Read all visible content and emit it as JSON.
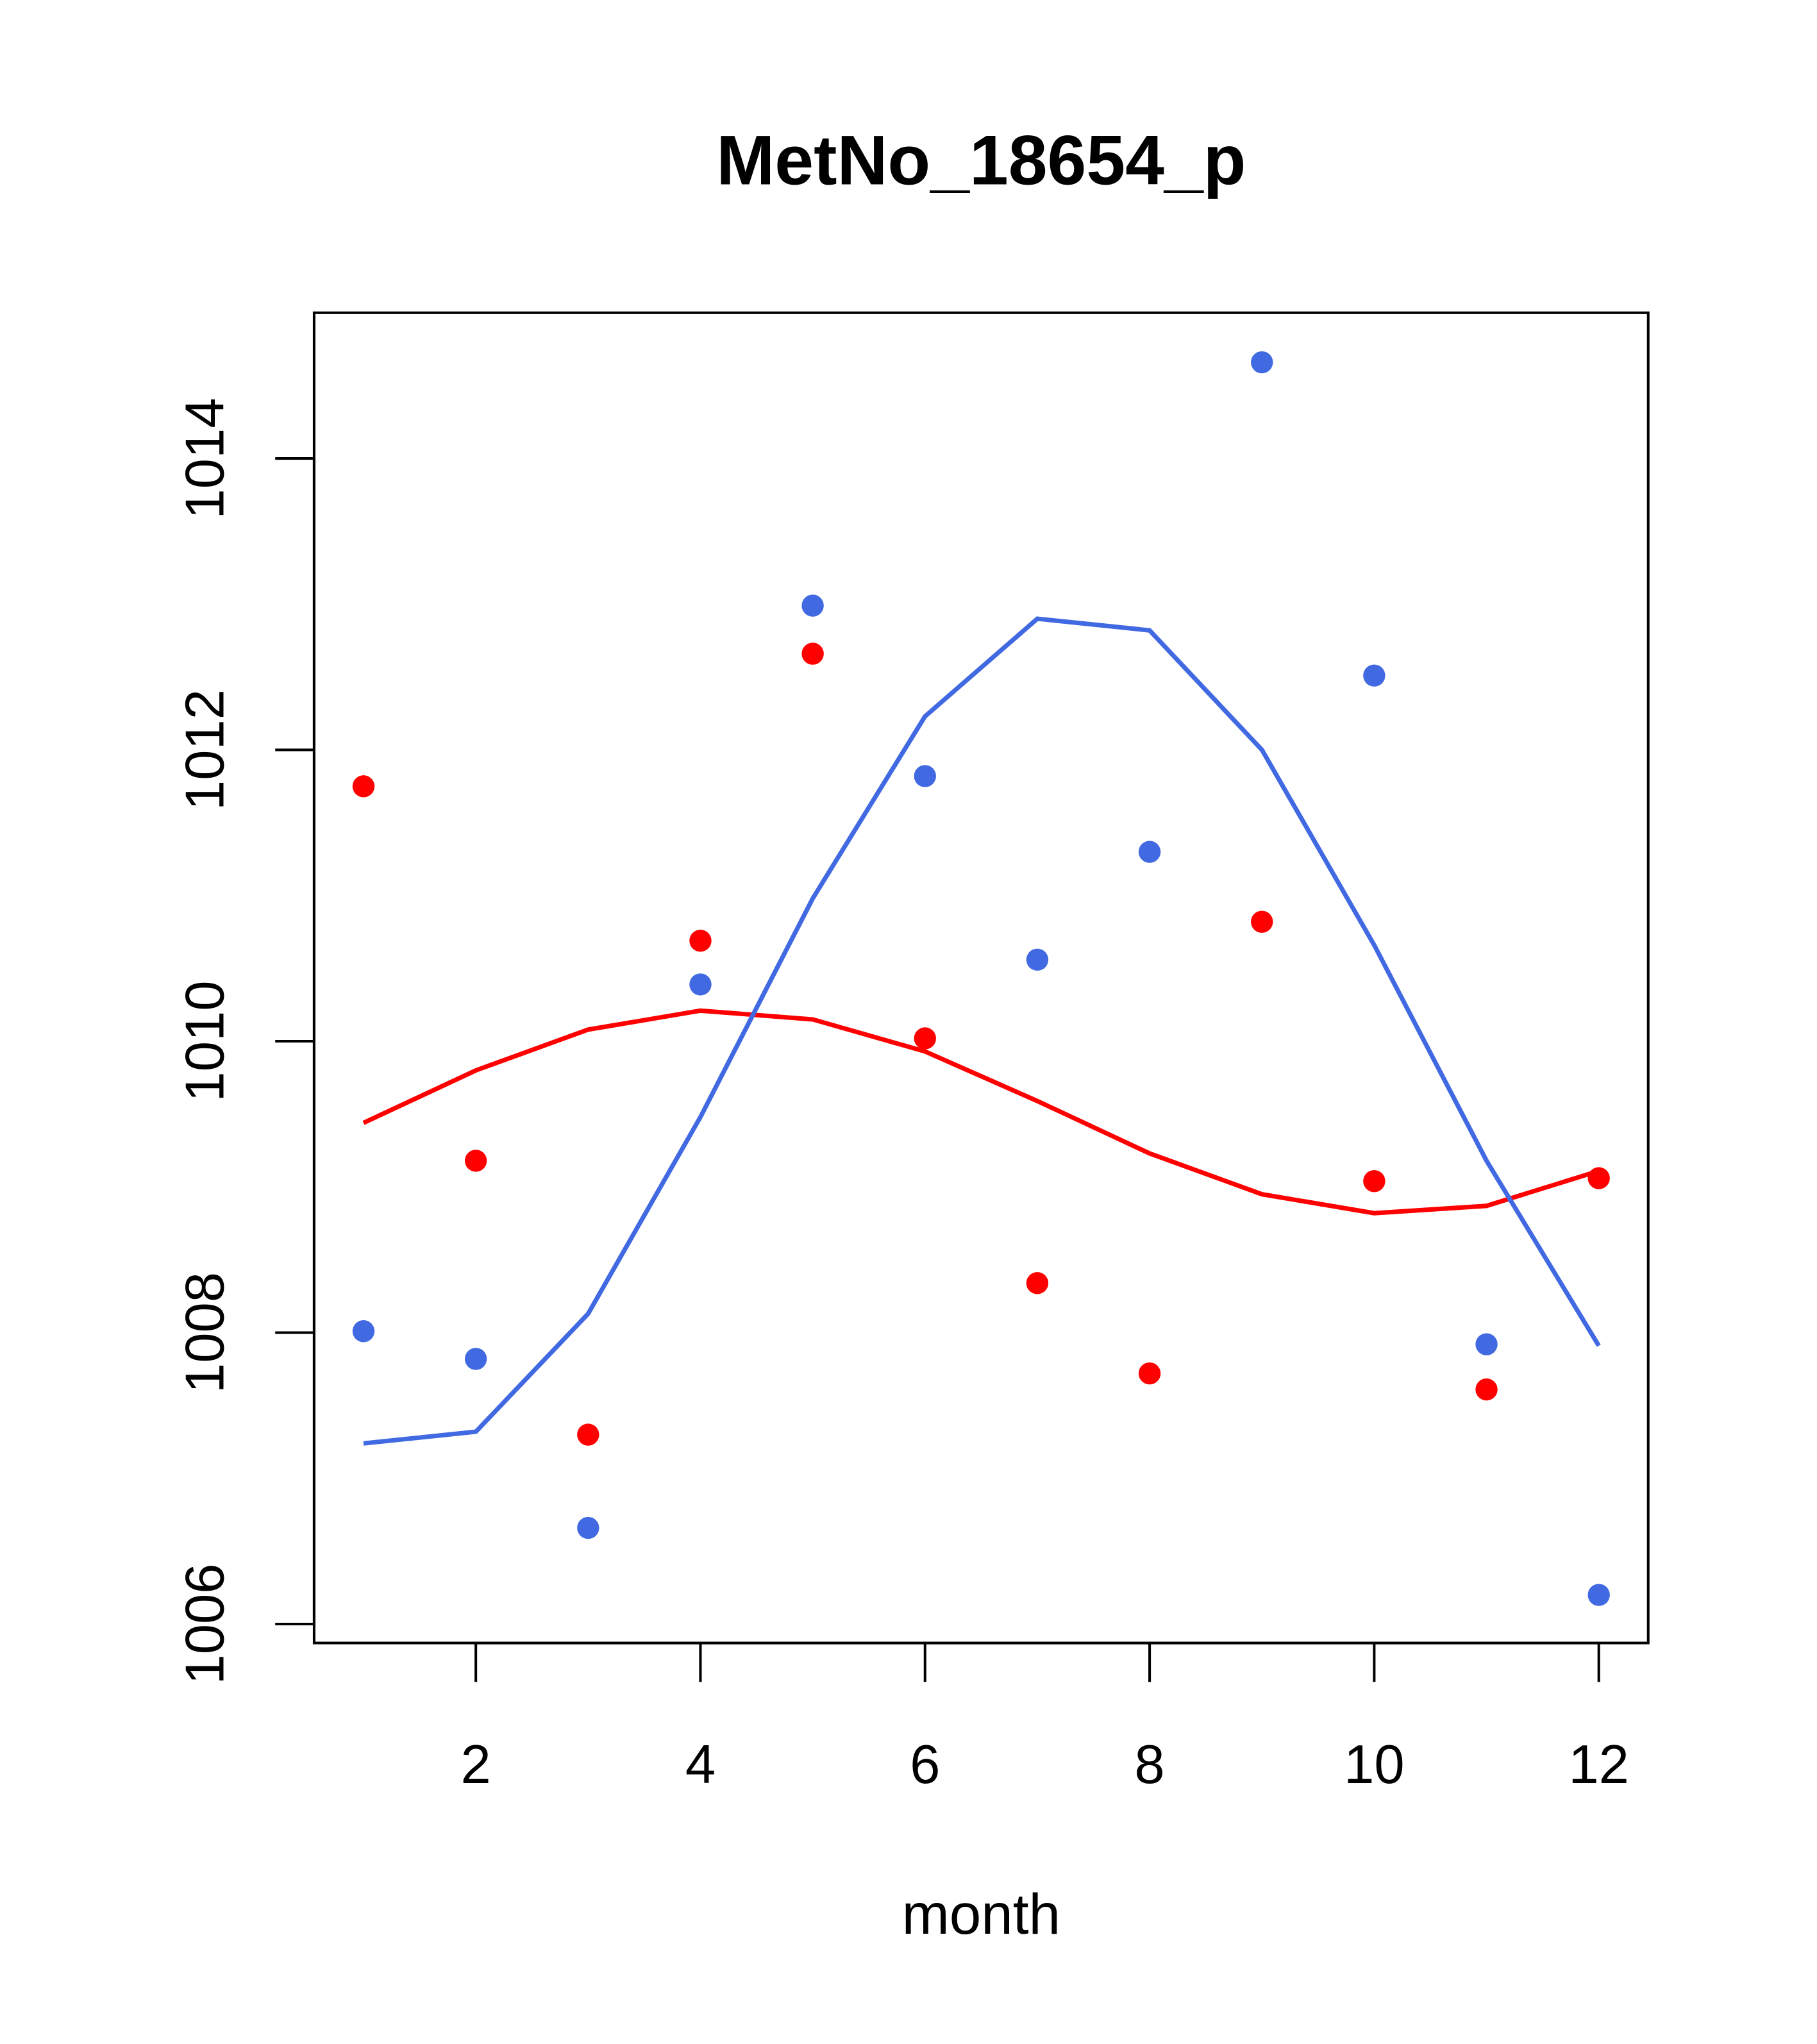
{
  "chart_data": {
    "type": "scatter",
    "title": "MetNo_18654_p",
    "xlabel": "month",
    "ylabel": "",
    "xlim": [
      0.56,
      12.44
    ],
    "ylim": [
      1005.87,
      1015.0
    ],
    "xticks": [
      2,
      4,
      6,
      8,
      10,
      12
    ],
    "yticks": [
      1006,
      1008,
      1010,
      1012,
      1014
    ],
    "grid": false,
    "x": [
      1,
      2,
      3,
      4,
      5,
      6,
      7,
      8,
      9,
      10,
      11,
      12
    ],
    "series": [
      {
        "name": "red points",
        "kind": "points",
        "color": "#ff0000",
        "values": [
          1011.75,
          1009.18,
          1007.3,
          1010.69,
          1012.66,
          1010.02,
          1008.34,
          1007.72,
          1010.82,
          1009.04,
          1007.61,
          1009.06
        ]
      },
      {
        "name": "blue points",
        "kind": "points",
        "color": "#4169e1",
        "values": [
          1008.01,
          1007.82,
          1006.66,
          1010.39,
          1012.99,
          1011.82,
          1010.56,
          1011.3,
          1014.66,
          1012.51,
          1007.92,
          1006.2
        ]
      },
      {
        "name": "red line",
        "kind": "line",
        "color": "#ff0000",
        "values": [
          1009.44,
          1009.8,
          1010.08,
          1010.21,
          1010.15,
          1009.93,
          1009.59,
          1009.23,
          1008.95,
          1008.82,
          1008.87,
          1009.11
        ]
      },
      {
        "name": "blue line",
        "kind": "line",
        "color": "#4169e1",
        "values": [
          1007.24,
          1007.32,
          1008.13,
          1009.48,
          1010.98,
          1012.23,
          1012.9,
          1012.82,
          1012.0,
          1010.66,
          1009.18,
          1007.91
        ]
      }
    ]
  }
}
